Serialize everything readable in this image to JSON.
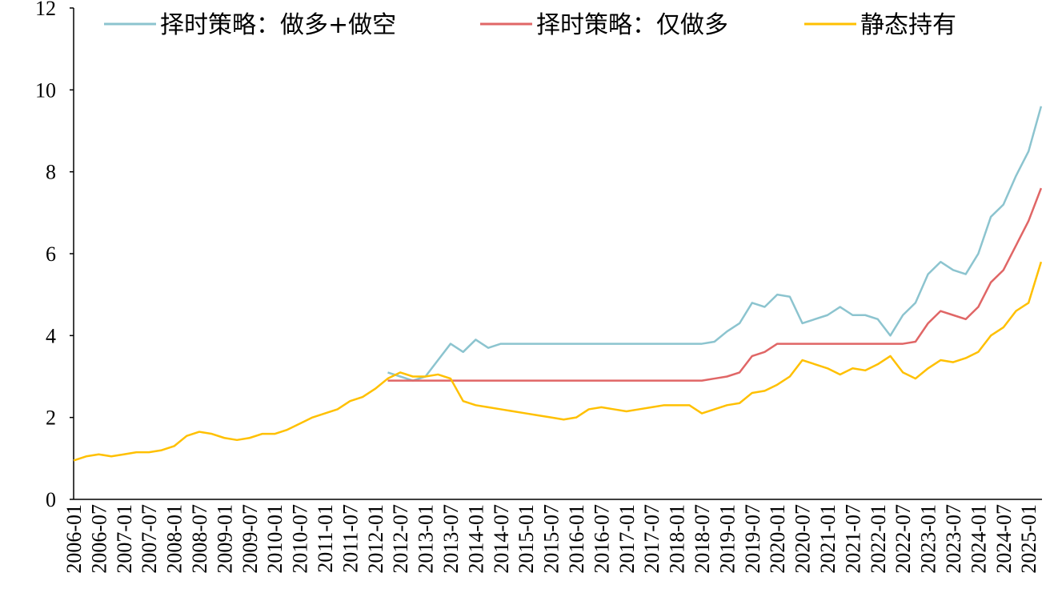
{
  "chart_data": {
    "type": "line",
    "x": [
      "2006-01",
      "2006-04",
      "2006-07",
      "2006-10",
      "2007-01",
      "2007-04",
      "2007-07",
      "2007-10",
      "2008-01",
      "2008-04",
      "2008-07",
      "2008-10",
      "2009-01",
      "2009-04",
      "2009-07",
      "2009-10",
      "2010-01",
      "2010-04",
      "2010-07",
      "2010-10",
      "2011-01",
      "2011-04",
      "2011-07",
      "2011-10",
      "2012-01",
      "2012-04",
      "2012-07",
      "2012-10",
      "2013-01",
      "2013-04",
      "2013-07",
      "2013-10",
      "2014-01",
      "2014-04",
      "2014-07",
      "2014-10",
      "2015-01",
      "2015-04",
      "2015-07",
      "2015-10",
      "2016-01",
      "2016-04",
      "2016-07",
      "2016-10",
      "2017-01",
      "2017-04",
      "2017-07",
      "2017-10",
      "2018-01",
      "2018-04",
      "2018-07",
      "2018-10",
      "2019-01",
      "2019-04",
      "2019-07",
      "2019-10",
      "2020-01",
      "2020-04",
      "2020-07",
      "2020-10",
      "2021-01",
      "2021-04",
      "2021-07",
      "2021-10",
      "2022-01",
      "2022-04",
      "2022-07",
      "2022-10",
      "2023-01",
      "2023-04",
      "2023-07",
      "2023-10",
      "2024-01",
      "2024-04",
      "2024-07",
      "2024-10",
      "2025-01",
      "2025-04"
    ],
    "xticks": [
      "2006-01",
      "2006-07",
      "2007-01",
      "2007-07",
      "2008-01",
      "2008-07",
      "2009-01",
      "2009-07",
      "2010-01",
      "2010-07",
      "2011-01",
      "2011-07",
      "2012-01",
      "2012-07",
      "2013-01",
      "2013-07",
      "2014-01",
      "2014-07",
      "2015-01",
      "2015-07",
      "2016-01",
      "2016-07",
      "2017-01",
      "2017-07",
      "2018-01",
      "2018-07",
      "2019-01",
      "2019-07",
      "2020-01",
      "2020-07",
      "2021-01",
      "2021-07",
      "2022-01",
      "2022-07",
      "2023-01",
      "2023-07",
      "2024-01",
      "2024-07",
      "2025-01"
    ],
    "series": [
      {
        "name": "择时策略：做多+做空",
        "color": "#8cc4cf",
        "values": [
          null,
          null,
          null,
          null,
          null,
          null,
          null,
          null,
          null,
          null,
          null,
          null,
          null,
          null,
          null,
          null,
          null,
          null,
          null,
          null,
          null,
          null,
          null,
          null,
          null,
          3.1,
          3.0,
          2.9,
          3.0,
          3.4,
          3.8,
          3.6,
          3.9,
          3.7,
          3.8,
          3.8,
          3.8,
          3.8,
          3.8,
          3.8,
          3.8,
          3.8,
          3.8,
          3.8,
          3.8,
          3.8,
          3.8,
          3.8,
          3.8,
          3.8,
          3.8,
          3.85,
          4.1,
          4.3,
          4.8,
          4.7,
          5.0,
          4.95,
          4.3,
          4.4,
          4.5,
          4.7,
          4.5,
          4.5,
          4.4,
          4.0,
          4.5,
          4.8,
          5.5,
          5.8,
          5.6,
          5.5,
          6.0,
          6.9,
          7.2,
          7.9,
          8.5,
          9.6
        ]
      },
      {
        "name": "择时策略：仅做多",
        "color": "#e06666",
        "values": [
          null,
          null,
          null,
          null,
          null,
          null,
          null,
          null,
          null,
          null,
          null,
          null,
          null,
          null,
          null,
          null,
          null,
          null,
          null,
          null,
          null,
          null,
          null,
          null,
          null,
          2.9,
          2.9,
          2.9,
          2.9,
          2.9,
          2.9,
          2.9,
          2.9,
          2.9,
          2.9,
          2.9,
          2.9,
          2.9,
          2.9,
          2.9,
          2.9,
          2.9,
          2.9,
          2.9,
          2.9,
          2.9,
          2.9,
          2.9,
          2.9,
          2.9,
          2.9,
          2.95,
          3.0,
          3.1,
          3.5,
          3.6,
          3.8,
          3.8,
          3.8,
          3.8,
          3.8,
          3.8,
          3.8,
          3.8,
          3.8,
          3.8,
          3.8,
          3.85,
          4.3,
          4.6,
          4.5,
          4.4,
          4.7,
          5.3,
          5.6,
          6.2,
          6.8,
          7.6
        ]
      },
      {
        "name": "静态持有",
        "color": "#ffc000",
        "values": [
          0.95,
          1.05,
          1.1,
          1.05,
          1.1,
          1.15,
          1.15,
          1.2,
          1.3,
          1.55,
          1.65,
          1.6,
          1.5,
          1.45,
          1.5,
          1.6,
          1.6,
          1.7,
          1.85,
          2.0,
          2.1,
          2.2,
          2.4,
          2.5,
          2.7,
          2.95,
          3.1,
          3.0,
          3.0,
          3.05,
          2.95,
          2.4,
          2.3,
          2.25,
          2.2,
          2.15,
          2.1,
          2.05,
          2.0,
          1.95,
          2.0,
          2.2,
          2.25,
          2.2,
          2.15,
          2.2,
          2.25,
          2.3,
          2.3,
          2.3,
          2.1,
          2.2,
          2.3,
          2.35,
          2.6,
          2.65,
          2.8,
          3.0,
          3.4,
          3.3,
          3.2,
          3.05,
          3.2,
          3.15,
          3.3,
          3.5,
          3.1,
          2.95,
          3.2,
          3.4,
          3.35,
          3.45,
          3.6,
          4.0,
          4.2,
          4.6,
          4.8,
          5.8
        ]
      }
    ],
    "ylim": [
      0,
      12
    ],
    "yticks": [
      0,
      2,
      4,
      6,
      8,
      10,
      12
    ],
    "legend": "top"
  }
}
